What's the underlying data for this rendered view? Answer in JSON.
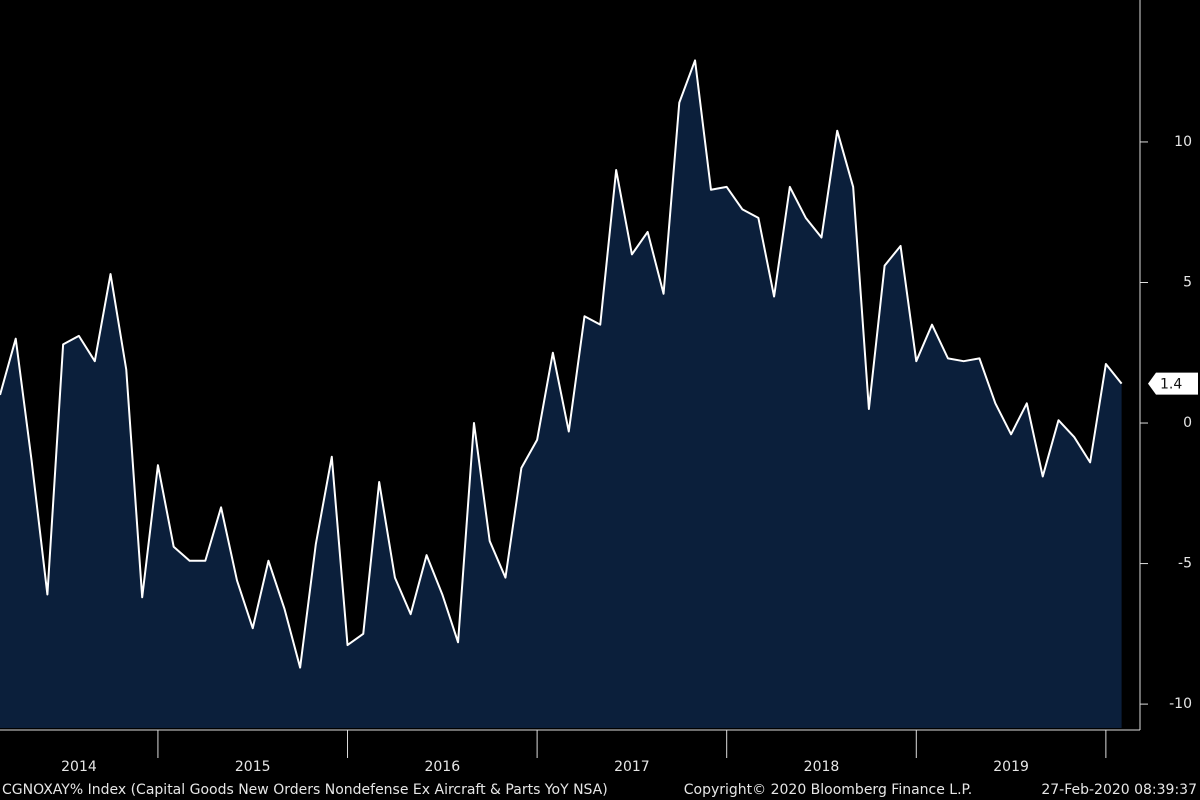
{
  "chart_data": {
    "type": "area",
    "line_color": "#ffffff",
    "fill_color": "#0b1f3b",
    "background": "#000000",
    "x": [
      2014.167,
      2014.25,
      2014.333,
      2014.417,
      2014.5,
      2014.583,
      2014.667,
      2014.75,
      2014.833,
      2014.917,
      2015.0,
      2015.083,
      2015.167,
      2015.25,
      2015.333,
      2015.417,
      2015.5,
      2015.583,
      2015.667,
      2015.75,
      2015.833,
      2015.917,
      2016.0,
      2016.083,
      2016.167,
      2016.25,
      2016.333,
      2016.417,
      2016.5,
      2016.583,
      2016.667,
      2016.75,
      2016.833,
      2016.917,
      2017.0,
      2017.083,
      2017.167,
      2017.25,
      2017.333,
      2017.417,
      2017.5,
      2017.583,
      2017.667,
      2017.75,
      2017.833,
      2017.917,
      2018.0,
      2018.083,
      2018.167,
      2018.25,
      2018.333,
      2018.417,
      2018.5,
      2018.583,
      2018.667,
      2018.75,
      2018.833,
      2018.917,
      2019.0,
      2019.083,
      2019.167,
      2019.25,
      2019.333,
      2019.417,
      2019.5,
      2019.583,
      2019.667,
      2019.75,
      2019.833,
      2019.917,
      2020.0,
      2020.083
    ],
    "values": [
      1.0,
      3.0,
      -1.3,
      -6.1,
      2.8,
      3.1,
      2.2,
      5.3,
      1.9,
      -6.2,
      -1.5,
      -4.4,
      -4.9,
      -4.9,
      -3.0,
      -5.6,
      -7.3,
      -4.9,
      -6.6,
      -8.7,
      -4.3,
      -1.2,
      -7.9,
      -7.5,
      -2.1,
      -5.5,
      -6.8,
      -4.7,
      -6.1,
      -7.8,
      0.0,
      -4.2,
      -5.5,
      -1.6,
      -0.6,
      2.5,
      -0.3,
      3.8,
      3.5,
      9.0,
      6.0,
      6.8,
      4.6,
      11.4,
      12.9,
      8.3,
      8.4,
      7.6,
      7.3,
      4.5,
      8.4,
      7.3,
      6.6,
      10.4,
      8.4,
      0.5,
      5.6,
      6.3,
      2.2,
      3.5,
      2.3,
      2.2,
      2.3,
      0.7,
      -0.4,
      0.7,
      -1.9,
      0.1,
      -0.5,
      -1.4,
      2.1,
      1.4
    ],
    "xlim": [
      2014.167,
      2020.18
    ],
    "xticks": [
      2015,
      2016,
      2017,
      2018,
      2019,
      2020
    ],
    "year_labels": [
      "2014",
      "2015",
      "2016",
      "2017",
      "2018",
      "2019"
    ],
    "ylim": [
      -10.85,
      15.05
    ],
    "yticks": [
      -10,
      -5,
      0,
      5,
      10
    ],
    "footer_left": "CGNOXAY% Index (Capital Goods New Orders Nondefense Ex Aircraft & Parts YoY NSA)",
    "footer_center": "Copyright© 2020 Bloomberg Finance L.P.",
    "footer_right": "27-Feb-2020 08:39:37"
  }
}
